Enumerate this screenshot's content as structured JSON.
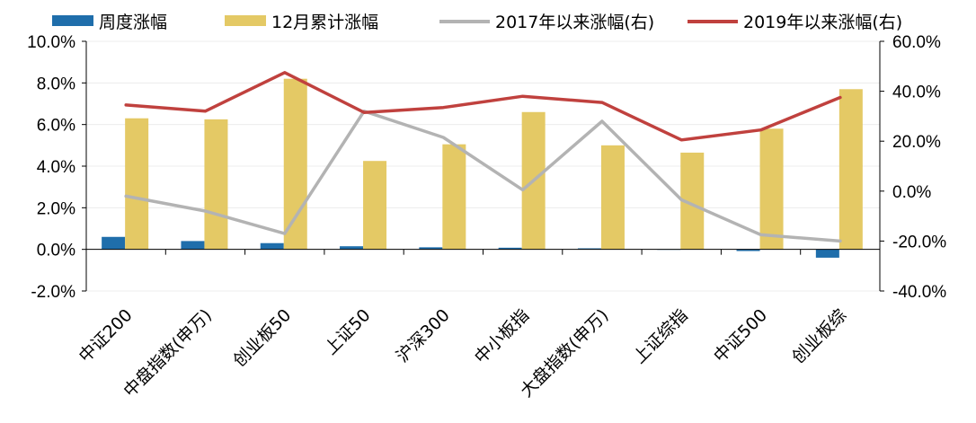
{
  "chart_data": {
    "type": "bar+line",
    "categories": [
      "中证200",
      "中盘指数(申万)",
      "创业板50",
      "上证50",
      "沪深300",
      "中小板指",
      "大盘指数(申万)",
      "上证综指",
      "中证500",
      "创业板综"
    ],
    "series": [
      {
        "name": "周度涨幅",
        "type": "bar",
        "axis": "left",
        "color": "#1f6eab",
        "values": [
          0.6,
          0.4,
          0.3,
          0.15,
          0.1,
          0.08,
          0.05,
          0.0,
          -0.08,
          -0.4
        ]
      },
      {
        "name": "12月累计涨幅",
        "type": "bar",
        "axis": "left",
        "color": "#e4c965",
        "values": [
          6.3,
          6.25,
          8.2,
          4.25,
          5.05,
          6.6,
          5.0,
          4.65,
          5.8,
          7.7
        ]
      },
      {
        "name": "2017年以来涨幅(右)",
        "type": "line",
        "axis": "right",
        "color": "#b3b3b3",
        "values": [
          -2,
          -8,
          -17,
          32,
          21.5,
          0.5,
          28,
          -3.5,
          -17.5,
          -20
        ]
      },
      {
        "name": "2019年以来涨幅(右)",
        "type": "line",
        "axis": "right",
        "color": "#c0413e",
        "values": [
          34.5,
          32,
          47.5,
          31.5,
          33.5,
          38,
          35.5,
          20.5,
          24.5,
          37.5
        ]
      }
    ],
    "y_left": {
      "min": -2,
      "max": 10,
      "step": 2,
      "ticks": [
        "-2.0%",
        "0.0%",
        "2.0%",
        "4.0%",
        "6.0%",
        "8.0%",
        "10.0%"
      ]
    },
    "y_right": {
      "min": -40,
      "max": 60,
      "step": 20,
      "ticks": [
        "-40.0%",
        "-20.0%",
        "0.0%",
        "20.0%",
        "40.0%",
        "60.0%"
      ]
    },
    "legend_position": "top",
    "grid": true
  }
}
